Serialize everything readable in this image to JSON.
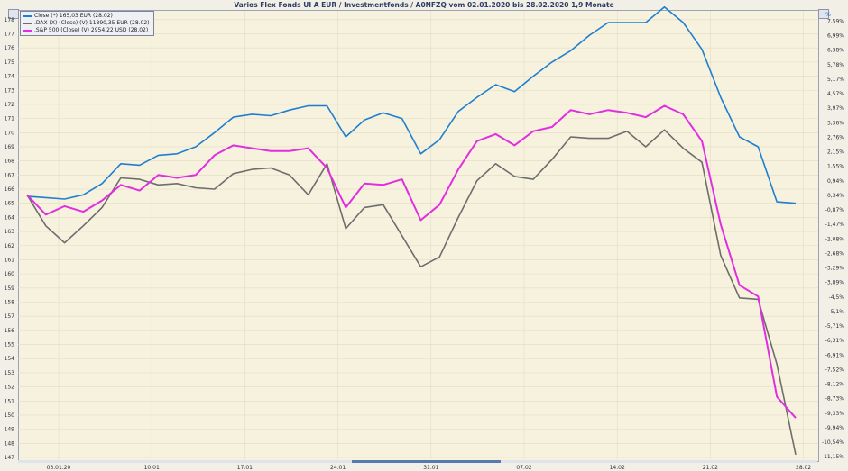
{
  "chart_data": {
    "type": "line",
    "title": "Varios Flex Fonds UI A EUR / Investmentfonds / A0NFZQ vom 02.01.2020 bis 28.02.2020 1,9 Monate",
    "y_left_ticks": [
      "178",
      "177",
      "176",
      "175",
      "174",
      "173",
      "172",
      "171",
      "170",
      "169",
      "168",
      "167",
      "166",
      "165",
      "164",
      "163",
      "162",
      "161",
      "160",
      "159",
      "158",
      "157",
      "156",
      "155",
      "154",
      "153",
      "152",
      "151",
      "150",
      "149",
      "148",
      "147"
    ],
    "y_right_unit": "%",
    "y_right_ticks": [
      "7,59%",
      "6,99%",
      "6,38%",
      "5,78%",
      "5,17%",
      "4,57%",
      "3,97%",
      "3,36%",
      "2,76%",
      "2,15%",
      "1,55%",
      "0,94%",
      "0,34%",
      "-0,87%",
      "-1,47%",
      "-2,08%",
      "-2,68%",
      "-3,29%",
      "-3,89%",
      "-4,5%",
      "-5,1%",
      "-5,71%",
      "-6,31%",
      "-6,91%",
      "-7,52%",
      "-8,12%",
      "-8,73%",
      "-9,33%",
      "-9,94%",
      "-10,54%",
      "-11,15%"
    ],
    "x_tick_labels": [
      "03.01.20",
      "10.01",
      "17.01",
      "24.01",
      "31.01",
      "07.02",
      "14.02",
      "21.02",
      "28.02"
    ],
    "ylim": [
      147,
      178.5
    ],
    "grid": true,
    "legend_position": "top-left",
    "series": [
      {
        "name": "Close (*) 165,03 EUR (28.02)",
        "color": "#1e7fd0",
        "values": [
          165.5,
          165.4,
          165.3,
          165.6,
          166.4,
          167.8,
          167.7,
          168.4,
          168.5,
          169.0,
          170.0,
          171.1,
          171.3,
          171.2,
          171.6,
          171.9,
          171.9,
          169.7,
          170.9,
          171.4,
          171.0,
          168.5,
          169.5,
          171.5,
          172.5,
          173.4,
          172.9,
          174.0,
          175.0,
          175.8,
          176.9,
          177.8,
          177.8,
          177.8,
          178.9,
          177.8,
          175.9,
          172.5,
          169.7,
          169.0,
          165.1,
          165.0
        ]
      },
      {
        "name": ".DAX (X) (Close) (V) 11890,35 EUR (28.02)",
        "color": "#6d6d6d",
        "values": [
          165.6,
          163.4,
          162.2,
          163.4,
          164.7,
          166.8,
          166.7,
          166.3,
          166.4,
          166.1,
          166.0,
          167.1,
          167.4,
          167.5,
          167.0,
          165.6,
          167.8,
          163.2,
          164.7,
          164.9,
          162.7,
          160.5,
          161.2,
          164.0,
          166.6,
          167.8,
          166.9,
          166.7,
          168.1,
          169.7,
          169.6,
          169.6,
          170.1,
          169.0,
          170.2,
          168.9,
          167.9,
          161.3,
          158.3,
          158.2,
          153.6,
          147.2
        ]
      },
      {
        "name": ".S&P 500 (Close) (V) 2954,22 USD (28.02)",
        "color": "#e12ee0",
        "values": [
          165.6,
          164.2,
          164.8,
          164.4,
          165.2,
          166.3,
          165.9,
          167.0,
          166.8,
          167.0,
          168.4,
          169.1,
          168.9,
          168.7,
          168.7,
          168.9,
          167.5,
          164.7,
          166.4,
          166.3,
          166.7,
          163.8,
          164.9,
          167.4,
          169.4,
          169.9,
          169.1,
          170.1,
          170.4,
          171.6,
          171.3,
          171.6,
          171.4,
          171.1,
          171.9,
          171.3,
          169.4,
          163.5,
          159.2,
          158.4,
          151.3,
          149.8
        ]
      }
    ]
  }
}
